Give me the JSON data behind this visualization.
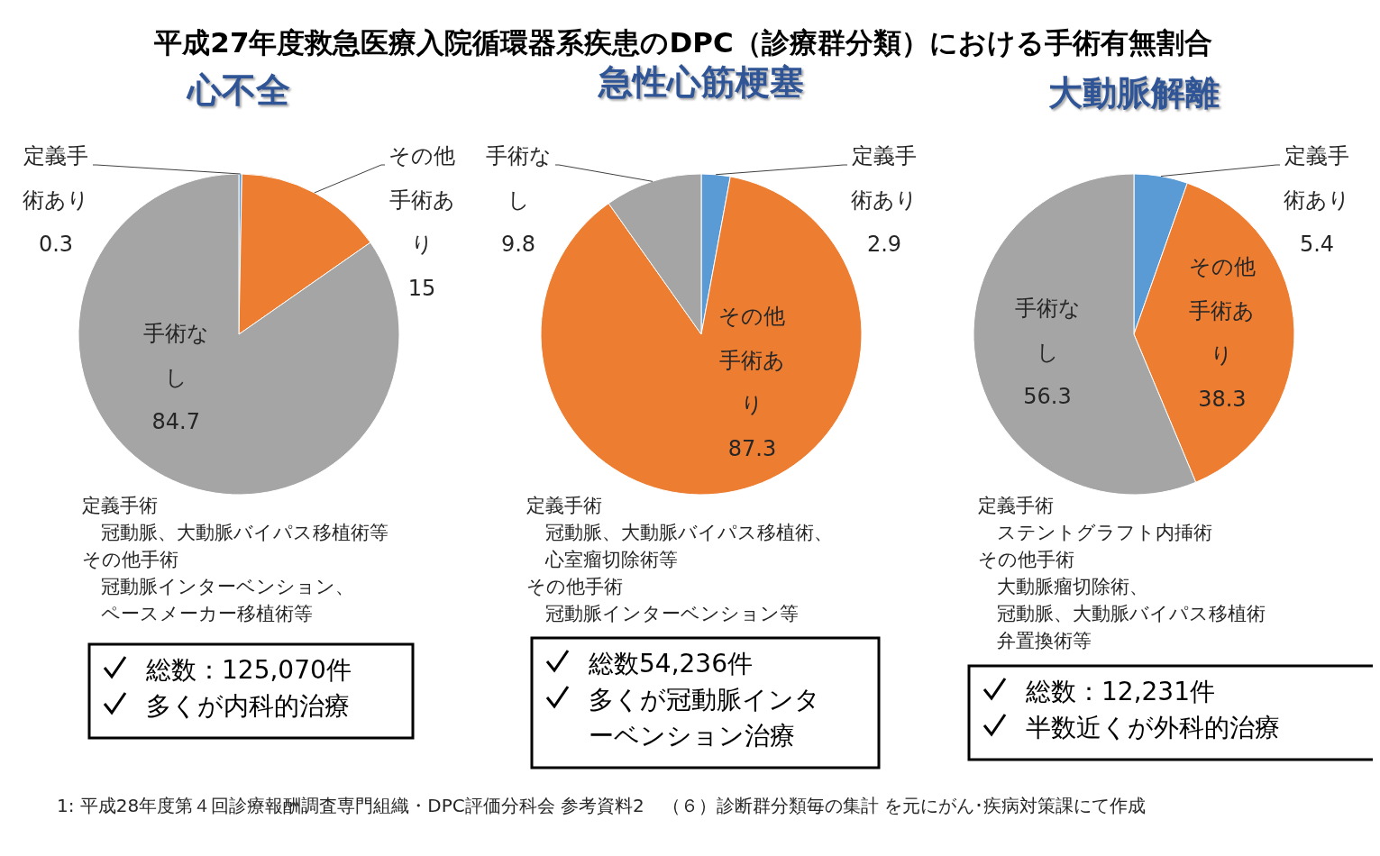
{
  "chart_data": [
    {
      "type": "other",
      "title": "平成27年度救急医療入院循環器系疾患のDPC（診療群分類）における手術有無割合",
      "annotations": [
        "1: 平成28年度第４回診療報酬調査専門組織・DPC評価分科会 参考資料2　（６）診断群分類毎の集計 を元にがん･疾病対策課にて作成"
      ]
    },
    {
      "type": "pie",
      "title": "心不全",
      "categories": [
        "定義手術あり",
        "その他手術あり",
        "手術なし"
      ],
      "values": [
        0.3,
        15,
        84.7
      ],
      "colors": [
        "#5b9bd5",
        "#ed7d31",
        "#a5a5a5"
      ],
      "data_labels": true,
      "annotations": [
        "定義手術",
        "　冠動脈、大動脈バイパス移植術等",
        "その他手術",
        "　冠動脈インターベンション、",
        "　ペースメーカー移植術等"
      ]
    },
    {
      "type": "pie",
      "title": "急性心筋梗塞",
      "categories": [
        "定義手術あり",
        "その他手術あり",
        "手術なし"
      ],
      "values": [
        2.9,
        87.3,
        9.8
      ],
      "colors": [
        "#5b9bd5",
        "#ed7d31",
        "#a5a5a5"
      ],
      "data_labels": true,
      "annotations": [
        "定義手術",
        "　冠動脈、大動脈バイパス移植術、",
        "　心室瘤切除術等",
        "その他手術",
        "　冠動脈インターベンション等"
      ]
    },
    {
      "type": "pie",
      "title": "大動脈解離",
      "categories": [
        "定義手術あり",
        "その他手術あり",
        "手術なし"
      ],
      "values": [
        5.4,
        38.3,
        56.3
      ],
      "colors": [
        "#5b9bd5",
        "#ed7d31",
        "#a5a5a5"
      ],
      "data_labels": true,
      "annotations": [
        "定義手術",
        "　ステントグラフト内挿術",
        "その他手術",
        "　大動脈瘤切除術、",
        "　冠動脈、大動脈バイパス移植術",
        "　弁置換術等"
      ]
    },
    {
      "type": "other",
      "annotations": [
        "総数：125,070件",
        "多くが内科的治療"
      ]
    },
    {
      "type": "other",
      "annotations": [
        "総数54,236件",
        "多くが冠動脈インターベンション治療"
      ]
    },
    {
      "type": "other",
      "annotations": [
        "総数：12,231件",
        "半数近くが外科的治療"
      ]
    }
  ]
}
